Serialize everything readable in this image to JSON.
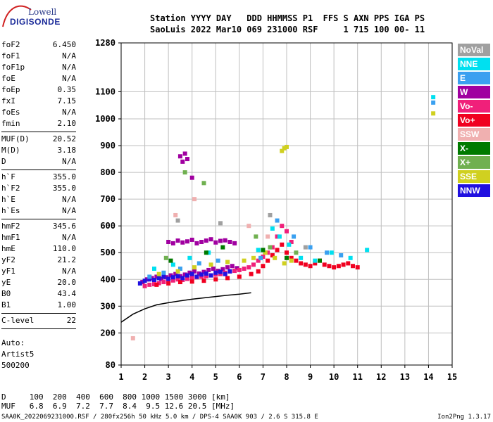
{
  "logo": {
    "line1": "Lowell",
    "line2": "DIGISONDE"
  },
  "header": {
    "line1": "Station YYYY DAY   DDD HHMMSS P1  FFS S AXN PPS IGA PS",
    "line2": "SaoLuis 2022 Mar10 069 231000 RSF     1 715 100 00- 11"
  },
  "params": [
    {
      "name": "foF2",
      "value": "6.450"
    },
    {
      "name": "foF1",
      "value": "N/A"
    },
    {
      "name": "foF1p",
      "value": "N/A"
    },
    {
      "name": "foE",
      "value": "N/A"
    },
    {
      "name": "foEp",
      "value": "0.35"
    },
    {
      "name": "fxI",
      "value": "7.15"
    },
    {
      "name": "foEs",
      "value": "N/A"
    },
    {
      "name": "fmin",
      "value": "2.10"
    },
    {
      "sep": true
    },
    {
      "name": "MUF(D)",
      "value": "20.52"
    },
    {
      "name": "M(D)",
      "value": "3.18"
    },
    {
      "name": "D",
      "value": "N/A"
    },
    {
      "sep": true
    },
    {
      "name": "h`F",
      "value": "355.0"
    },
    {
      "name": "h`F2",
      "value": "355.0"
    },
    {
      "name": "h`E",
      "value": "N/A"
    },
    {
      "name": "h`Es",
      "value": "N/A"
    },
    {
      "sep": true
    },
    {
      "name": "hmF2",
      "value": "345.6"
    },
    {
      "name": "hmF1",
      "value": "N/A"
    },
    {
      "name": "hmE",
      "value": "110.0"
    },
    {
      "name": "yF2",
      "value": "21.2"
    },
    {
      "name": "yF1",
      "value": "N/A"
    },
    {
      "name": "yE",
      "value": "20.0"
    },
    {
      "name": "B0",
      "value": "43.4"
    },
    {
      "name": "B1",
      "value": "1.00"
    },
    {
      "sep": true
    },
    {
      "name": "C-level",
      "value": "22"
    },
    {
      "sep": true
    }
  ],
  "auto": {
    "line1": "Auto:",
    "line2": "Artist5",
    "line3": "500200"
  },
  "legend": [
    {
      "label": "NoVal",
      "color": "#a0a0a0"
    },
    {
      "label": "NNE",
      "color": "#00e0f0"
    },
    {
      "label": "E",
      "color": "#3aa0f0"
    },
    {
      "label": "W",
      "color": "#a000a0"
    },
    {
      "label": "Vo-",
      "color": "#f0207a"
    },
    {
      "label": "Vo+",
      "color": "#f00020"
    },
    {
      "label": "SSW",
      "color": "#f0b0b0"
    },
    {
      "label": "X-",
      "color": "#007a00"
    },
    {
      "label": "X+",
      "color": "#70b050"
    },
    {
      "label": "SSE",
      "color": "#d0d020"
    },
    {
      "label": "NNW",
      "color": "#2010e0"
    }
  ],
  "muf": {
    "line1": "D     100  200  400  600  800 1000 1500 3000 [km]",
    "line2": "MUF   6.8  6.9  7.2  7.7  8.4  9.5 12.6 20.5 [MHz]"
  },
  "footer": "SAA0K_2022069231000.RSF / 280fx256h 50 kHz 5.0 km / DPS-4 SAA0K 903 / 2.6 S 315.8 E",
  "version": "Ion2Png 1.3.17",
  "chart_data": {
    "type": "scatter",
    "xlim": [
      1,
      15
    ],
    "ylim": [
      80,
      1280
    ],
    "x_ticks": [
      1,
      2,
      3,
      4,
      5,
      6,
      7,
      8,
      9,
      10,
      11,
      12,
      13,
      14,
      15
    ],
    "y_ticks": [
      80,
      200,
      300,
      400,
      500,
      600,
      700,
      800,
      900,
      1000,
      1100,
      1280
    ],
    "grid": true,
    "profile_curve": {
      "x": [
        1.0,
        1.5,
        2.0,
        2.5,
        3.0,
        3.5,
        4.0,
        4.5,
        5.0,
        5.5,
        6.0,
        6.5
      ],
      "y": [
        240,
        270,
        290,
        305,
        313,
        320,
        326,
        331,
        336,
        341,
        345,
        350
      ]
    },
    "trace_series": [
      {
        "name": "W",
        "color": "#a000a0",
        "x": [
          1.9,
          2.1,
          2.3,
          2.5,
          2.7,
          2.9,
          3.1,
          3.3,
          3.5,
          3.7,
          3.9,
          4.1,
          4.3,
          4.5,
          4.7,
          4.9,
          5.1,
          5.3,
          5.5,
          5.7,
          5.9,
          3.0,
          3.2,
          3.4,
          3.6,
          3.8,
          4.0,
          4.2,
          4.4,
          4.6,
          4.8,
          5.0,
          5.2,
          5.4,
          5.6,
          5.8,
          3.5,
          3.6,
          3.7,
          3.8,
          4.0
        ],
        "y": [
          390,
          400,
          405,
          410,
          402,
          408,
          415,
          420,
          412,
          418,
          425,
          430,
          422,
          428,
          435,
          440,
          432,
          438,
          445,
          450,
          442,
          540,
          535,
          545,
          538,
          542,
          548,
          535,
          540,
          545,
          550,
          538,
          544,
          546,
          540,
          535,
          860,
          840,
          870,
          850,
          780
        ]
      },
      {
        "name": "Vo-",
        "color": "#f0207a",
        "x": [
          2.0,
          2.2,
          2.4,
          2.6,
          2.8,
          3.0,
          3.2,
          3.4,
          3.6,
          3.8,
          4.0,
          4.2,
          4.4,
          4.6,
          4.8,
          5.0,
          5.2,
          5.4,
          5.6,
          5.8,
          6.0,
          6.2,
          6.4,
          6.6,
          6.8,
          7.0,
          7.2,
          7.4,
          7.6,
          7.8,
          8.0,
          8.2
        ],
        "y": [
          375,
          380,
          382,
          386,
          390,
          392,
          396,
          400,
          398,
          402,
          405,
          408,
          410,
          412,
          415,
          418,
          420,
          425,
          430,
          432,
          435,
          440,
          445,
          455,
          470,
          485,
          500,
          520,
          560,
          600,
          580,
          540
        ]
      },
      {
        "name": "Vo+",
        "color": "#f00020",
        "x": [
          2.5,
          3.0,
          3.5,
          4.0,
          4.5,
          5.0,
          5.5,
          6.0,
          6.5,
          6.8,
          7.0,
          7.2,
          7.4,
          7.6,
          7.8,
          8.0,
          8.2,
          8.4,
          8.6,
          8.8,
          9.0,
          9.2,
          9.4,
          9.6,
          9.8,
          10.0,
          10.2,
          10.4,
          10.6,
          10.8,
          11.0
        ],
        "y": [
          380,
          385,
          390,
          392,
          395,
          400,
          405,
          410,
          420,
          430,
          450,
          470,
          490,
          510,
          530,
          500,
          480,
          470,
          460,
          455,
          450,
          460,
          470,
          455,
          450,
          445,
          450,
          455,
          460,
          450,
          445
        ]
      },
      {
        "name": "NNW",
        "color": "#2010e0",
        "x": [
          1.8,
          2.0,
          2.2,
          2.4,
          2.6,
          2.8,
          3.0,
          3.2,
          3.4,
          3.6,
          3.8,
          4.0,
          4.2,
          4.4,
          4.6,
          4.8,
          5.0,
          5.2,
          5.4,
          5.6
        ],
        "y": [
          385,
          395,
          400,
          398,
          405,
          410,
          402,
          408,
          412,
          405,
          415,
          420,
          410,
          418,
          422,
          415,
          425,
          428,
          420,
          430
        ]
      },
      {
        "name": "NNE",
        "color": "#00e0f0",
        "x": [
          2.4,
          3.2,
          3.9,
          4.7,
          6.8,
          7.4,
          7.7,
          8.1,
          8.6,
          9.2,
          9.9,
          10.7,
          11.4,
          14.2
        ],
        "y": [
          440,
          455,
          480,
          500,
          510,
          590,
          560,
          530,
          480,
          470,
          500,
          480,
          510,
          1080
        ]
      },
      {
        "name": "E",
        "color": "#3aa0f0",
        "x": [
          2.2,
          2.8,
          3.5,
          4.3,
          5.1,
          6.9,
          7.6,
          8.3,
          9.0,
          9.7,
          10.3,
          14.2
        ],
        "y": [
          410,
          425,
          440,
          460,
          470,
          480,
          620,
          560,
          520,
          500,
          490,
          1060
        ]
      },
      {
        "name": "SSE",
        "color": "#d0d020",
        "x": [
          2.6,
          3.4,
          4.1,
          4.8,
          5.5,
          6.2,
          6.6,
          7.1,
          7.5,
          7.9,
          8.2,
          7.8,
          7.9,
          8.0,
          14.2
        ],
        "y": [
          420,
          430,
          445,
          455,
          465,
          470,
          480,
          500,
          480,
          460,
          470,
          880,
          890,
          895,
          1020
        ]
      },
      {
        "name": "X-",
        "color": "#007a00",
        "x": [
          3.1,
          4.6,
          5.3,
          7.0,
          8.0,
          9.4
        ],
        "y": [
          470,
          500,
          520,
          510,
          480,
          470
        ]
      },
      {
        "name": "X+",
        "color": "#70b050",
        "x": [
          2.9,
          3.7,
          4.5,
          6.7,
          7.3,
          8.4
        ],
        "y": [
          480,
          800,
          760,
          560,
          520,
          500
        ]
      },
      {
        "name": "SSW",
        "color": "#f0b0b0",
        "x": [
          1.5,
          3.3,
          4.1,
          6.4,
          7.2
        ],
        "y": [
          180,
          640,
          700,
          600,
          560
        ]
      },
      {
        "name": "NoVal",
        "color": "#a0a0a0",
        "x": [
          3.4,
          5.2,
          7.3,
          8.8
        ],
        "y": [
          620,
          610,
          640,
          520
        ]
      }
    ]
  }
}
